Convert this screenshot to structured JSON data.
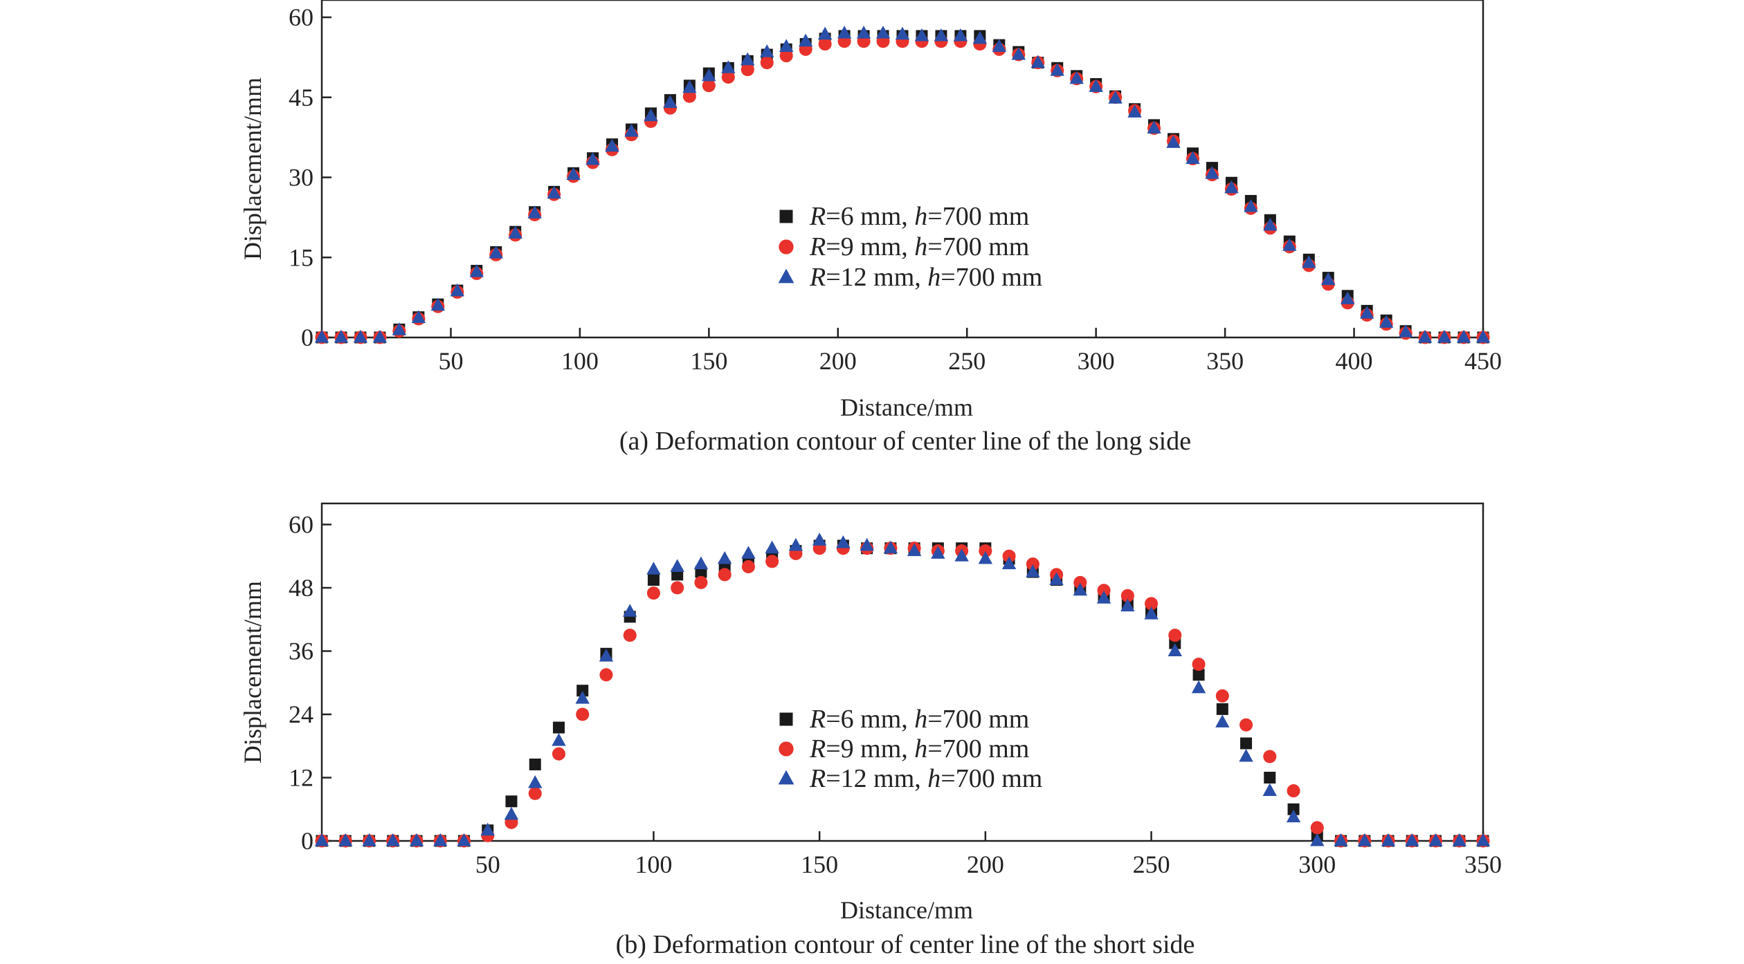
{
  "chart_data": [
    {
      "type": "scatter",
      "caption": "(a) Deformation contour of center line of the long side",
      "xlabel": "Distance/mm",
      "ylabel": "Displacement/mm",
      "xlim": [
        0,
        450
      ],
      "ylim": [
        0,
        60
      ],
      "xticks": [
        50,
        100,
        150,
        200,
        250,
        300,
        350,
        400,
        450
      ],
      "yticks": [
        0,
        15,
        30,
        45,
        60
      ],
      "legend_position": "center",
      "x": [
        0,
        7.5,
        15,
        22.5,
        30,
        37.5,
        45,
        52.5,
        60,
        67.5,
        75,
        82.5,
        90,
        97.5,
        105,
        112.5,
        120,
        127.5,
        135,
        142.5,
        150,
        157.5,
        165,
        172.5,
        180,
        187.5,
        195,
        202.5,
        210,
        217.5,
        225,
        232.5,
        240,
        247.5,
        255,
        262.5,
        270,
        277.5,
        285,
        292.5,
        300,
        307.5,
        315,
        322.5,
        330,
        337.5,
        345,
        352.5,
        360,
        367.5,
        375,
        382.5,
        390,
        397.5,
        405,
        412.5,
        420,
        427.5,
        435,
        442.5,
        450
      ],
      "series": [
        {
          "name_italic": "R",
          "name_rest": "=6 mm, ",
          "param_italic": "h",
          "param_rest": "=700 mm",
          "marker": "square",
          "color": "#1a1a1a",
          "values": [
            0,
            0,
            0,
            0,
            1.5,
            3.8,
            6.2,
            8.8,
            12.5,
            16,
            19.8,
            23.5,
            27.3,
            30.8,
            33.6,
            36.2,
            39,
            42,
            44.5,
            47.2,
            49.5,
            50.5,
            51.8,
            53,
            54,
            55,
            56,
            56.5,
            56.5,
            56.5,
            56.5,
            56.5,
            56.5,
            56.5,
            56.5,
            54.8,
            53.5,
            51.5,
            50.5,
            49,
            47.5,
            45.2,
            42.8,
            39.8,
            37.2,
            34.5,
            31.8,
            29,
            25.6,
            22,
            18,
            14.6,
            11.2,
            7.8,
            5,
            3.2,
            1.2,
            0,
            0,
            0,
            0
          ]
        },
        {
          "name_italic": "R",
          "name_rest": "=9 mm, ",
          "param_italic": "h",
          "param_rest": "=700 mm",
          "marker": "circle",
          "color": "#e8322b",
          "values": [
            0,
            0,
            0,
            0,
            1.2,
            3.5,
            5.8,
            8.5,
            12,
            15.5,
            19.2,
            23,
            26.8,
            30.2,
            32.8,
            35.2,
            38,
            40.5,
            43,
            45.2,
            47.2,
            48.8,
            50.2,
            51.5,
            52.8,
            54,
            55,
            55.5,
            55.5,
            55.5,
            55.5,
            55.5,
            55.5,
            55.5,
            55,
            54,
            53,
            51.5,
            50,
            48.5,
            47,
            45,
            42.5,
            39.2,
            36.8,
            33.5,
            30.5,
            27.8,
            24.2,
            20.5,
            17,
            13.5,
            10,
            6.5,
            4.2,
            2.5,
            0.8,
            0,
            0,
            0,
            0
          ]
        },
        {
          "name_italic": "R",
          "name_rest": "=12 mm, ",
          "param_italic": "h",
          "param_rest": "=700 mm",
          "marker": "triangle",
          "color": "#2a4fa8",
          "values": [
            0,
            0,
            0,
            0,
            1.4,
            3.7,
            6,
            8.7,
            12.3,
            15.8,
            19.5,
            23.3,
            27,
            30.5,
            33.3,
            35.8,
            38.6,
            41.5,
            44,
            46.8,
            49,
            50.5,
            52,
            53.5,
            54.5,
            55.5,
            56.8,
            57,
            57,
            57,
            56.8,
            56.5,
            56.5,
            56.5,
            56,
            54.5,
            53,
            51.5,
            50,
            48.5,
            47,
            44.8,
            42.2,
            39.2,
            36.5,
            33.5,
            30.7,
            28,
            24.5,
            21,
            17.2,
            14,
            10.8,
            7.2,
            4.5,
            2.8,
            1,
            0,
            0,
            0,
            0
          ]
        }
      ]
    },
    {
      "type": "scatter",
      "caption": "(b) Deformation contour of center line of the short side",
      "xlabel": "Distance/mm",
      "ylabel": "Displacement/mm",
      "xlim": [
        0,
        350
      ],
      "ylim": [
        0,
        64
      ],
      "xticks": [
        50,
        100,
        150,
        200,
        250,
        300,
        350
      ],
      "yticks": [
        0,
        12,
        24,
        36,
        48,
        60
      ],
      "legend_position": "center",
      "x": [
        0,
        7.14,
        14.29,
        21.43,
        28.57,
        35.71,
        42.86,
        50,
        57.14,
        64.29,
        71.43,
        78.57,
        85.71,
        92.86,
        100,
        107.14,
        114.29,
        121.43,
        128.57,
        135.71,
        142.86,
        150,
        157.14,
        164.29,
        171.43,
        178.57,
        185.71,
        192.86,
        200,
        207.14,
        214.29,
        221.43,
        228.57,
        235.71,
        242.86,
        250,
        257.14,
        264.29,
        271.43,
        278.57,
        285.71,
        292.86,
        300,
        307.14,
        314.29,
        321.43,
        328.57,
        335.71,
        342.86,
        350
      ],
      "series": [
        {
          "name_italic": "R",
          "name_rest": "=6 mm, ",
          "param_italic": "h",
          "param_rest": "=700 mm",
          "marker": "square",
          "color": "#1a1a1a",
          "values": [
            0,
            0,
            0,
            0,
            0,
            0,
            0,
            2,
            7.5,
            14.5,
            21.5,
            28.5,
            35.5,
            42.5,
            49.5,
            50.5,
            51,
            52,
            53,
            54,
            55,
            56,
            56,
            55.5,
            55.5,
            55.5,
            55.5,
            55.5,
            55.5,
            53.5,
            51,
            49.5,
            48,
            46.5,
            45,
            43.5,
            37.5,
            31.5,
            25,
            18.5,
            12,
            6,
            1,
            0,
            0,
            0,
            0,
            0,
            0,
            0
          ]
        },
        {
          "name_italic": "R",
          "name_rest": "=9 mm, ",
          "param_italic": "h",
          "param_rest": "=700 mm",
          "marker": "circle",
          "color": "#e8322b",
          "values": [
            0,
            0,
            0,
            0,
            0,
            0,
            0,
            1,
            3.5,
            9,
            16.5,
            24,
            31.5,
            39,
            47,
            48,
            49,
            50.5,
            52,
            53,
            54.5,
            55.5,
            55.5,
            55.5,
            55.5,
            55.5,
            55,
            55,
            55,
            54,
            52.5,
            50.5,
            49,
            47.5,
            46.5,
            45,
            39,
            33.5,
            27.5,
            22,
            16,
            9.5,
            2.5,
            0,
            0,
            0,
            0,
            0,
            0,
            0
          ]
        },
        {
          "name_italic": "R",
          "name_rest": "=12 mm, ",
          "param_italic": "h",
          "param_rest": "=700 mm",
          "marker": "triangle",
          "color": "#2a4fa8",
          "values": [
            0,
            0,
            0,
            0,
            0,
            0,
            0,
            2,
            5,
            11,
            19,
            27,
            35,
            43.5,
            51.5,
            52,
            52.5,
            53.5,
            54.5,
            55.5,
            56,
            57,
            56.5,
            56,
            55.5,
            55,
            54.5,
            54,
            53.5,
            52.5,
            51,
            49.5,
            47.5,
            46,
            44.5,
            43,
            36,
            29,
            22.5,
            16,
            9.5,
            4.5,
            0,
            0,
            0,
            0,
            0,
            0,
            0,
            0
          ]
        }
      ]
    }
  ]
}
